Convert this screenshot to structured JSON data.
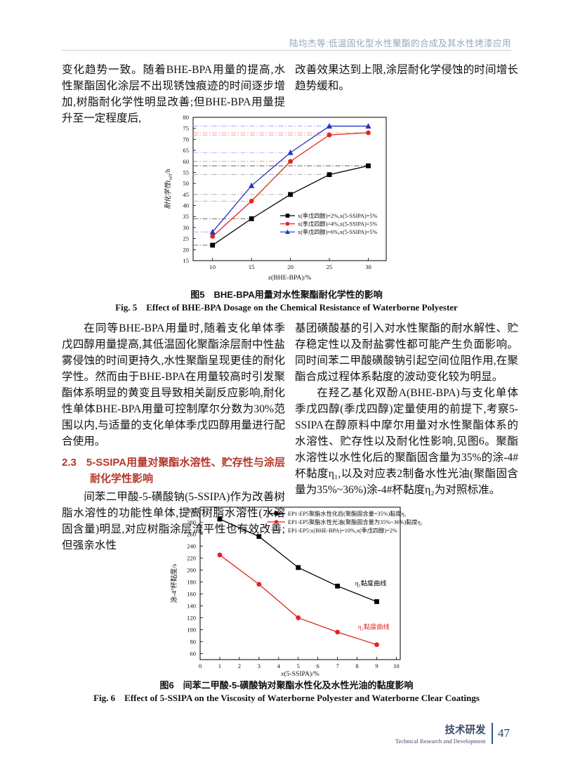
{
  "header": {
    "running_title": "陆均杰等:低温固化型水性聚酯的合成及其水性烤漆应用"
  },
  "content": {
    "col1_top": "变化趋势一致。随着BHE-BPA用量的提高,水性聚酯固化涂层不出现锈蚀痕迹的时间逐步增加,树脂耐化学性明显改善;但BHE-BPA用量提升至一定程度后,",
    "col2_top": "改善效果达到上限,涂层耐化学侵蚀的时间增长趋势缓和。",
    "fig5_caption_cn": "图5　BHE-BPA用量对水性聚酯耐化学性的影响",
    "fig5_caption_en": "Fig. 5　Effect of BHE-BPA Dosage on the Chemical Resistance of Waterborne Polyester",
    "col1_mid_p1": "在同等BHE-BPA用量时,随着支化单体季戊四醇用量提高,其低温固化聚酯涂层耐中性盐雾侵蚀的时间更持久,水性聚酯呈现更佳的耐化学性。然而由于BHE-BPA在用量较高时引发聚酯体系明显的黄变且导致相关副反应影响,耐化性单体BHE-BPA用量可控制摩尔分数为30%范围以内,与适量的支化单体季戊四醇用量进行配合使用。",
    "heading_2_3_num": "2.3",
    "heading_2_3_text": "5-SSIPA用量对聚酯水溶性、贮存性与涂层耐化学性影响",
    "col1_mid_p2": "间苯二甲酸-5-磺酸钠(5-SSIPA)作为改善树脂水溶性的功能性单体,提高树脂水溶性(水溶固含量)明显,对应树脂涂层流平性也有效改善;但强亲水性",
    "col2_mid_p1": "基团磺酸基的引入对水性聚酯的耐水解性、贮存稳定性以及耐盐雾性都可能产生负面影响。同时间苯二甲酸磺酸钠引起空间位阻作用,在聚酯合成过程体系黏度的波动变化较为明显。",
    "col2_mid_p2": "在羟乙基化双酚A(BHE-BPA)与支化单体季戊四醇(季戊四醇)定量使用的前提下,考察5-SSIPA在醇原料中摩尔用量对水性聚酯体系的水溶性、贮存性以及耐化性影响,见图6。聚酯水溶性以水性化后的聚酯固含量为35%的涂-4#杯黏度η₁,以及对应表2制备水性光油(聚酯固含量为35%~36%)涂-4#杯黏度η₂为对照标准。",
    "fig6_caption_cn": "图6　间苯二甲酸-5-磺酸钠对聚酯水性化及水性光油的黏度影响",
    "fig6_caption_en": "Fig. 6　Effect of 5-SSIPA on the Viscosity of Waterborne Polyester and Waterborne Clear Coatings"
  },
  "footer": {
    "section_cn": "技术研发",
    "section_en": "Technical Research and Development",
    "page_number": "47"
  },
  "chart_data": [
    {
      "type": "line",
      "title": "图5 BHE-BPA用量对水性聚酯耐化学性的影响",
      "xlabel_italic": "x",
      "xlabel_rest": "(BHE-BPA)/%",
      "ylabel": {
        "pre": "耐化学性t",
        "sub": "salt",
        "post": "/h"
      },
      "xlim": [
        7.5,
        32.3
      ],
      "ylim": [
        15,
        80
      ],
      "xticks": [
        10,
        15,
        20,
        25,
        30
      ],
      "yticks": [
        15,
        20,
        25,
        30,
        35,
        40,
        45,
        50,
        55,
        60,
        65,
        70,
        75,
        80
      ],
      "x": [
        10,
        15,
        20,
        25,
        30
      ],
      "series": [
        {
          "name": "x(季戊四醇)=2%,x(5-SSIPA)=5%",
          "color": "#000000",
          "marker": "square",
          "values": [
            22,
            34,
            45,
            54,
            58
          ]
        },
        {
          "name": "x(季戊四醇)=4%,x(5-SSIPA)=5%",
          "color": "#e1261d",
          "marker": "circle",
          "values": [
            26,
            42,
            60,
            72,
            73
          ]
        },
        {
          "name": "x(季戊四醇)=6%,x(5-SSIPA)=5%",
          "color": "#2832c4",
          "marker": "triangle",
          "values": [
            28,
            49,
            64,
            76,
            76
          ]
        }
      ],
      "guides": [
        {
          "y": 22,
          "to_x": 10,
          "color": "#444444"
        },
        {
          "y": 28,
          "to_x": 10,
          "color": "#9aa4e8"
        },
        {
          "y": 34,
          "to_x": 15,
          "color": "#444444"
        },
        {
          "y": 42,
          "to_x": 15,
          "color": "#e87d74"
        },
        {
          "y": 45,
          "to_x": 20,
          "color": "#999999"
        },
        {
          "y": 54,
          "to_x": 25,
          "color": "#999999"
        },
        {
          "y": 58,
          "to_x": 30,
          "color": "#444444"
        },
        {
          "y": 60,
          "to_x": 20,
          "color": "#e87d74"
        },
        {
          "y": 64,
          "to_x": 20,
          "color": "#9aa4e8"
        },
        {
          "y": 72,
          "to_x": 25,
          "color": "#e87d74"
        },
        {
          "y": 73,
          "to_x": 30,
          "color": "#e87d74"
        },
        {
          "y": 76,
          "to_x": 30,
          "color": "#9aa4e8"
        }
      ],
      "legend_position": "lower right inside plot",
      "grid": false
    },
    {
      "type": "line",
      "title": "图6 间苯二甲酸-5-磺酸钠对聚酯水性化及水性光油的黏度影响",
      "xlabel_italic": "x",
      "xlabel_rest": "(5-SSIPA)/%",
      "ylabel": {
        "pre": "涂-4",
        "sup": "#",
        "post": "杯黏度/s"
      },
      "xlim": [
        0,
        10.2
      ],
      "ylim": [
        50,
        305
      ],
      "xticks": [
        0,
        1,
        2,
        3,
        4,
        5,
        6,
        7,
        8,
        9,
        10
      ],
      "yticks": [
        60,
        80,
        100,
        120,
        140,
        160,
        180,
        200,
        220,
        240,
        260,
        280,
        300
      ],
      "x": [
        1,
        3,
        5,
        7,
        9
      ],
      "series": [
        {
          "name": "EP1-EP5聚酯水性化后(聚酯固含量=35%)黏度η₁",
          "color": "#000000",
          "marker": "square",
          "values": [
            285,
            256,
            204,
            173,
            147
          ]
        },
        {
          "name": "EP1-EP5聚酯水性光油(聚酯固含量为35%~36%)黏度η₂",
          "color": "#e1261d",
          "marker": "circle",
          "values": [
            225,
            176,
            120,
            96,
            75
          ]
        }
      ],
      "legend_note": "EP1-EP5:x(BHE-BPA)=10%,x(季戊四醇)=2%",
      "annotations": [
        {
          "text": "η₁黏度曲线",
          "color": "#000000",
          "x": 7.9,
          "y": 174
        },
        {
          "text": "η₂黏度曲线",
          "color": "#e1261d",
          "x": 8.05,
          "y": 101
        }
      ],
      "legend_position": "upper right inside plot",
      "grid": false
    }
  ]
}
